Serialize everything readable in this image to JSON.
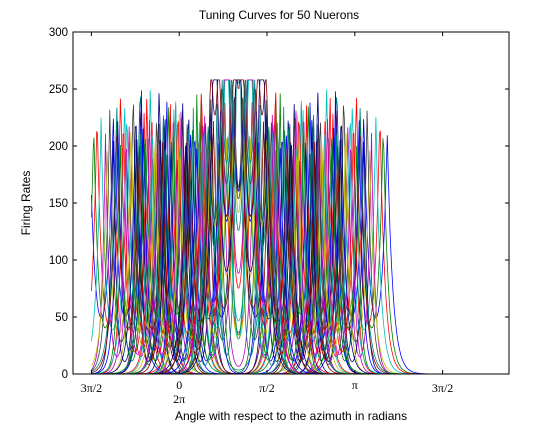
{
  "chart_data": {
    "type": "line",
    "title": "Tuning Curves for 50 Nuerons",
    "xlabel": "Angle with respect to the azimuth in radians",
    "ylabel": "Firing Rates",
    "ylim": [
      0,
      300
    ],
    "yticks": [
      "0",
      "50",
      "100",
      "150",
      "200",
      "250",
      "300"
    ],
    "xticks": [
      {
        "value": -1.5708,
        "label": "3π/2"
      },
      {
        "value": 0,
        "label": "0",
        "label2": "2π"
      },
      {
        "value": 1.5708,
        "label": "π/2"
      },
      {
        "value": 3.1416,
        "label": "π"
      },
      {
        "value": 4.7124,
        "label": "3π/2"
      }
    ],
    "xlim": [
      -1.9,
      5.9
    ],
    "curve_domain": [
      -1.5708,
      4.7124
    ],
    "legend": "none",
    "grid": false,
    "series_count": 50,
    "peak_firing_rate_approx": 258,
    "colors": [
      "#0000ff",
      "#008000",
      "#ff0000",
      "#00bfbf",
      "#bf00bf",
      "#bfbf00",
      "#404040",
      "#000080",
      "#800000",
      "#008080"
    ]
  }
}
